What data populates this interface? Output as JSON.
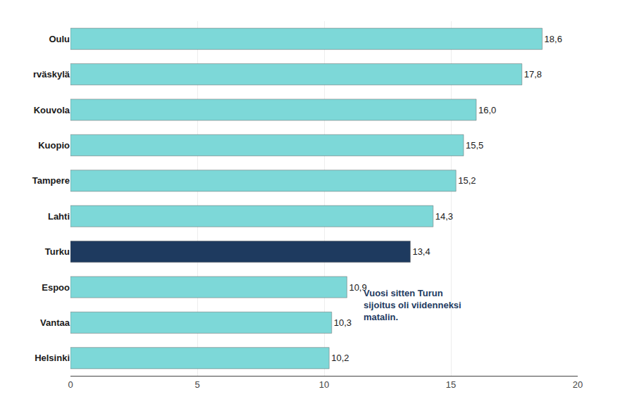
{
  "chart_data": {
    "type": "bar",
    "orientation": "horizontal",
    "categories": [
      "Helsinki",
      "Vantaa",
      "Espoo",
      "Turku",
      "Lahti",
      "Tampere",
      "Kuopio",
      "Kouvola",
      "rväskylä",
      "Oulu"
    ],
    "values": [
      10.2,
      10.3,
      10.9,
      13.4,
      14.3,
      15.2,
      15.5,
      16.0,
      17.8,
      18.6
    ],
    "value_labels": [
      "10,2",
      "10,3",
      "10,9",
      "13,4",
      "14,3",
      "15,2",
      "15,5",
      "16,0",
      "17,8",
      "18,6"
    ],
    "data_labels": true,
    "colors": [
      "#7DD8D8",
      "#7DD8D8",
      "#7DD8D8",
      "#1E3A5F",
      "#7DD8D8",
      "#7DD8D8",
      "#7DD8D8",
      "#7DD8D8",
      "#7DD8D8",
      "#7DD8D8"
    ],
    "xlim": [
      0,
      20
    ],
    "xticks": [
      0,
      5,
      10,
      15,
      20
    ],
    "grid": true,
    "annotations": [
      {
        "text": "Vuosi sitten Turun\nsijoitus oli viidenneksi\nmatalin.",
        "x": 11.5,
        "y": 1.5,
        "color": "#1E3A5F"
      }
    ]
  }
}
